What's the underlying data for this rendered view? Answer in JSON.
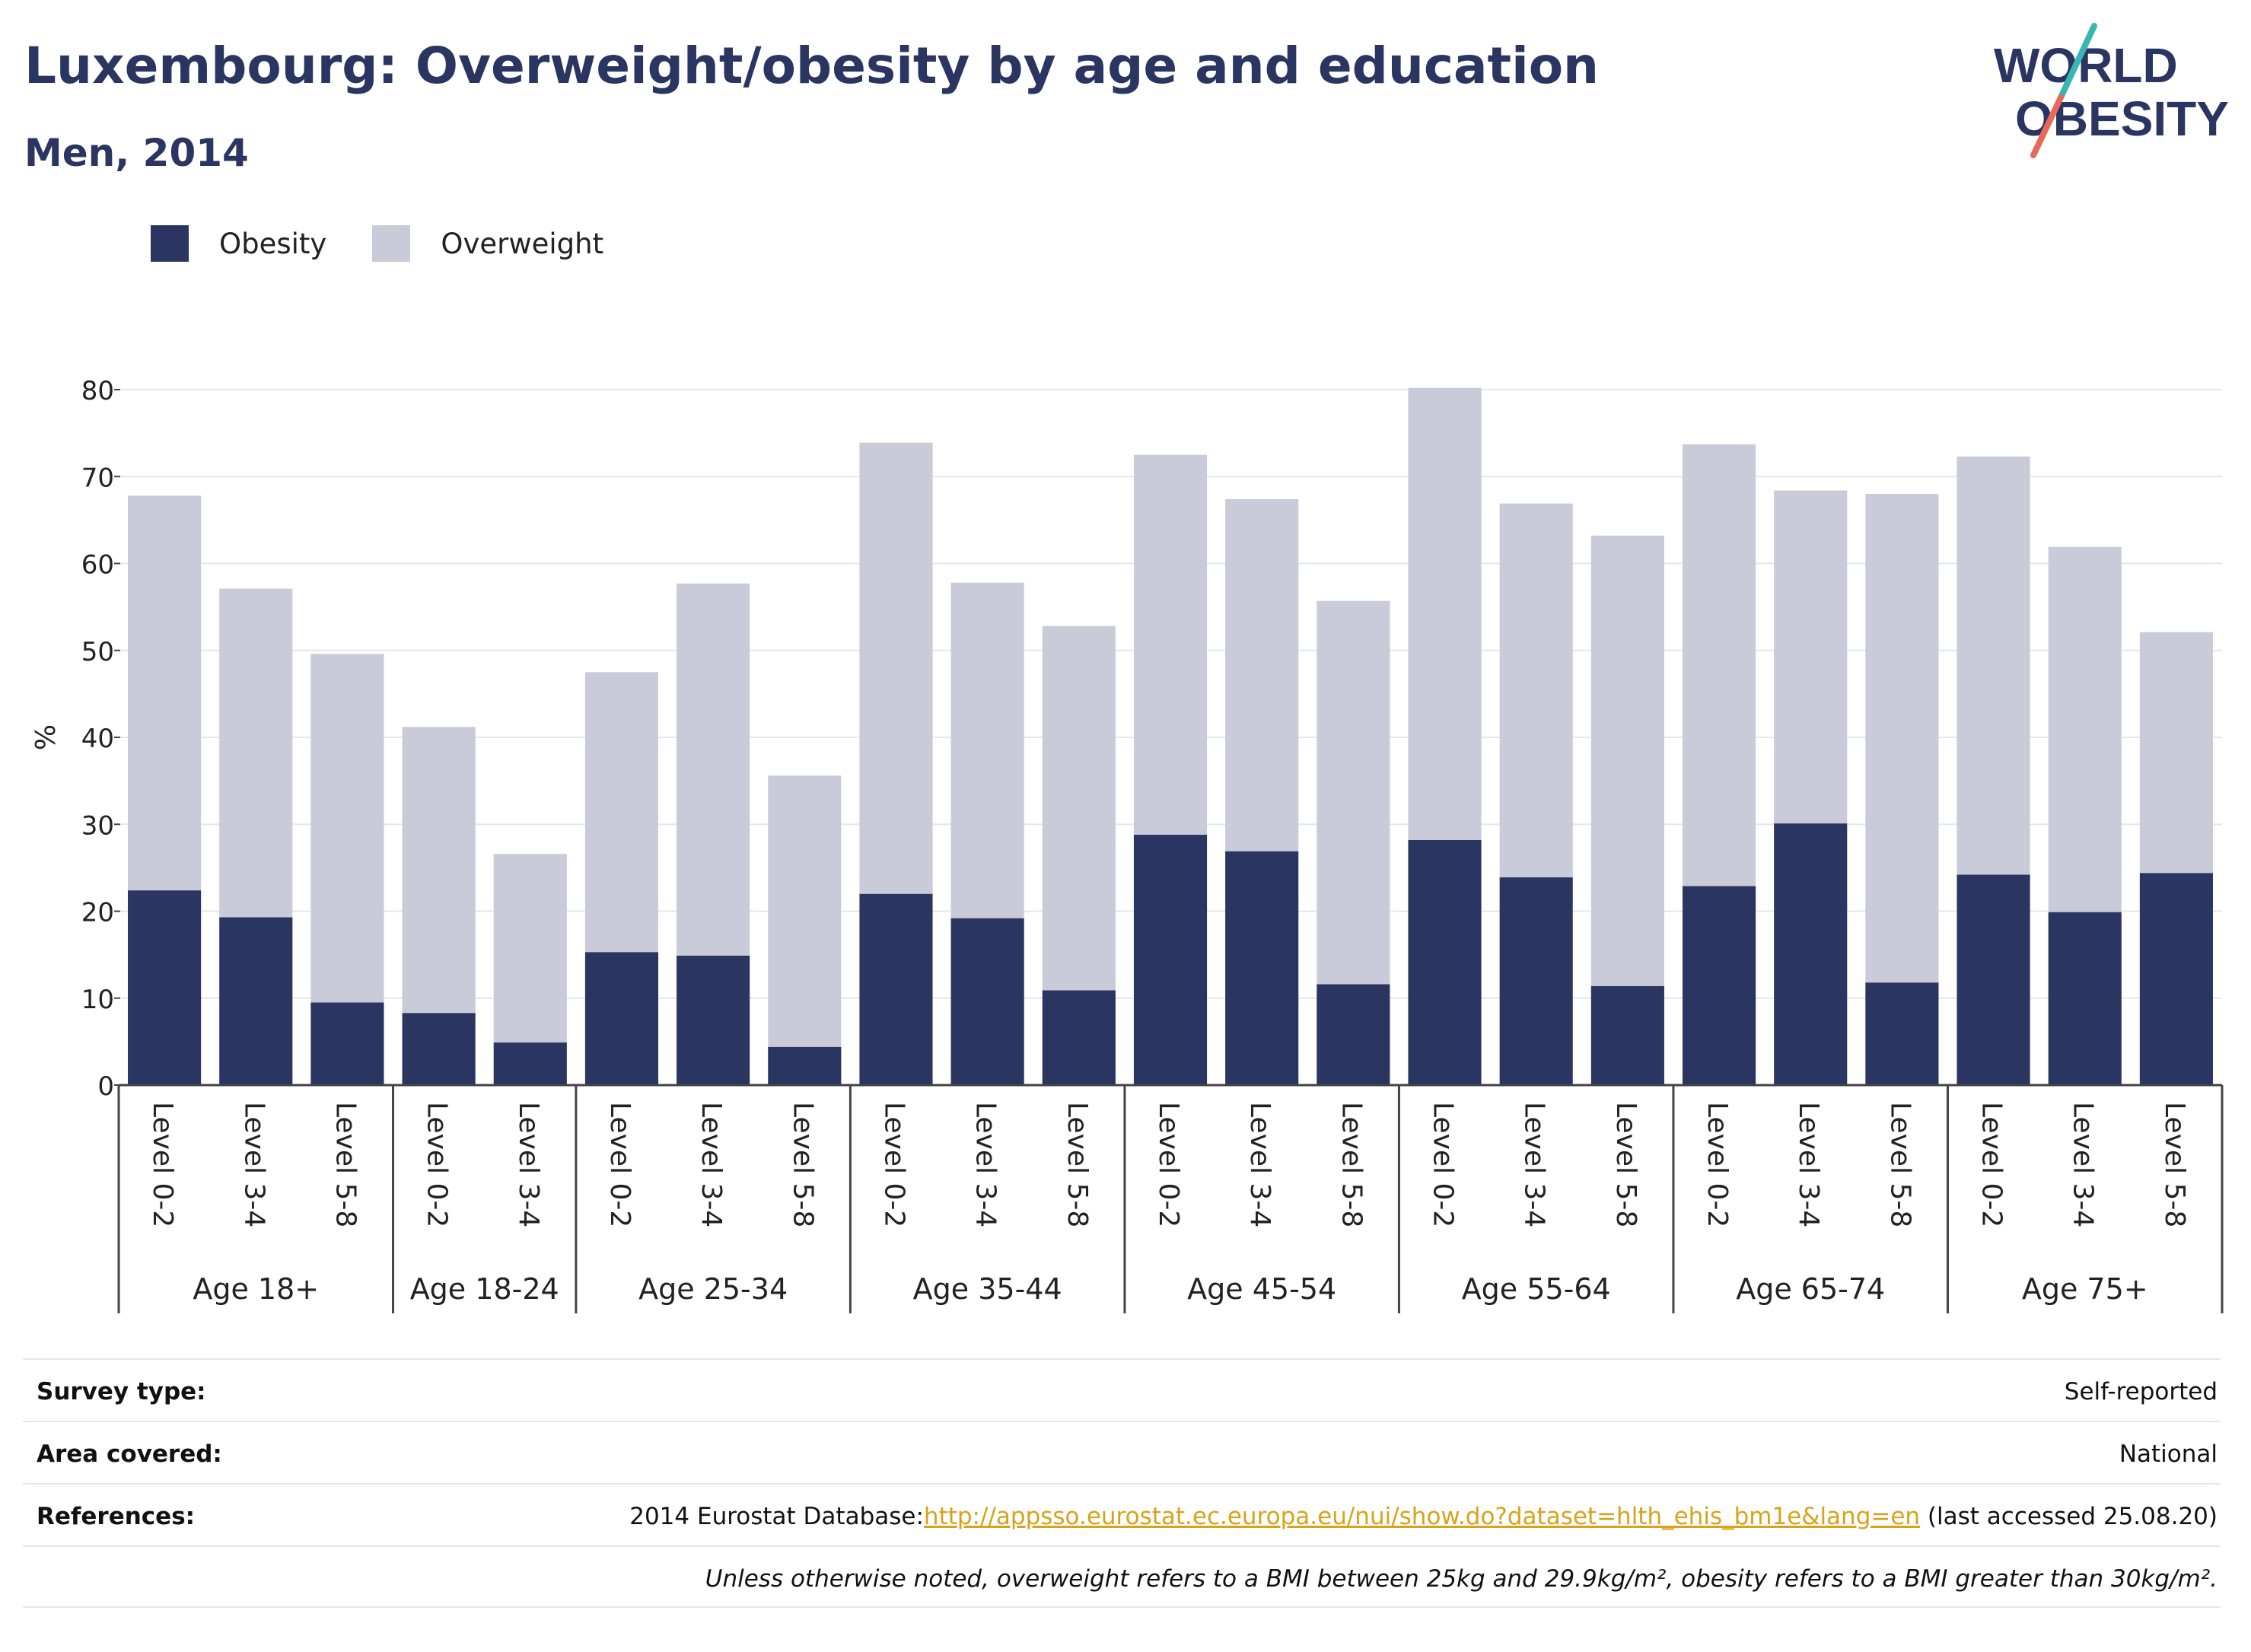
{
  "header": {
    "title": "Luxembourg: Overweight/obesity by age and education",
    "subtitle": "Men, 2014",
    "logo_line1": "WORLD",
    "logo_line2": "OBESITY"
  },
  "legend": {
    "obesity_label": "Obesity",
    "overweight_label": "Overweight"
  },
  "colors": {
    "obesity": "#2a3561",
    "overweight": "#c9cbd8",
    "logo_teal": "#38b6b2",
    "logo_coral": "#e8685a",
    "link": "#d9a21b"
  },
  "chart_data": {
    "type": "bar",
    "stacked": true,
    "ylabel": "%",
    "ylim": [
      0,
      80
    ],
    "yticks": [
      0,
      10,
      20,
      30,
      40,
      50,
      60,
      70,
      80
    ],
    "grid": true,
    "legend_position": "top-left",
    "categories": [
      {
        "group": "Age 18+",
        "level": "Level 0-2"
      },
      {
        "group": "Age 18+",
        "level": "Level 3-4"
      },
      {
        "group": "Age 18+",
        "level": "Level 5-8"
      },
      {
        "group": "Age 18-24",
        "level": "Level 0-2"
      },
      {
        "group": "Age 18-24",
        "level": "Level 3-4"
      },
      {
        "group": "Age 25-34",
        "level": "Level 0-2"
      },
      {
        "group": "Age 25-34",
        "level": "Level 3-4"
      },
      {
        "group": "Age 25-34",
        "level": "Level 5-8"
      },
      {
        "group": "Age 35-44",
        "level": "Level 0-2"
      },
      {
        "group": "Age 35-44",
        "level": "Level 3-4"
      },
      {
        "group": "Age 35-44",
        "level": "Level 5-8"
      },
      {
        "group": "Age 45-54",
        "level": "Level 0-2"
      },
      {
        "group": "Age 45-54",
        "level": "Level 3-4"
      },
      {
        "group": "Age 45-54",
        "level": "Level 5-8"
      },
      {
        "group": "Age 55-64",
        "level": "Level 0-2"
      },
      {
        "group": "Age 55-64",
        "level": "Level 3-4"
      },
      {
        "group": "Age 55-64",
        "level": "Level 5-8"
      },
      {
        "group": "Age 65-74",
        "level": "Level 0-2"
      },
      {
        "group": "Age 65-74",
        "level": "Level 3-4"
      },
      {
        "group": "Age 65-74",
        "level": "Level 5-8"
      },
      {
        "group": "Age 75+",
        "level": "Level 0-2"
      },
      {
        "group": "Age 75+",
        "level": "Level 3-4"
      },
      {
        "group": "Age 75+",
        "level": "Level 5-8"
      }
    ],
    "groups": [
      "Age 18+",
      "Age 18-24",
      "Age 25-34",
      "Age 35-44",
      "Age 45-54",
      "Age 55-64",
      "Age 65-74",
      "Age 75+"
    ],
    "series": [
      {
        "name": "Obesity",
        "values": [
          22.4,
          19.3,
          9.5,
          8.3,
          4.9,
          15.3,
          14.9,
          4.4,
          22.0,
          19.2,
          10.9,
          28.8,
          26.9,
          11.6,
          28.2,
          23.9,
          11.4,
          22.9,
          30.1,
          11.8,
          24.2,
          19.9,
          24.4
        ]
      },
      {
        "name": "Overweight",
        "values": [
          45.4,
          37.8,
          40.1,
          32.9,
          21.7,
          32.2,
          42.8,
          31.2,
          51.9,
          38.6,
          41.9,
          43.7,
          40.5,
          44.1,
          52.0,
          43.0,
          51.8,
          50.8,
          38.3,
          56.2,
          48.1,
          42.0,
          27.7
        ]
      }
    ]
  },
  "footer": {
    "survey_type_label": "Survey type:",
    "survey_type_value": "Self-reported",
    "area_label": "Area covered:",
    "area_value": "National",
    "references_label": "References:",
    "references_prefix": "2014 Eurostat Database:",
    "references_link": "http://appsso.eurostat.ec.europa.eu/nui/show.do?dataset=hlth_ehis_bm1e&lang=en",
    "references_suffix": " (last accessed 25.08.20)",
    "note": "Unless otherwise noted, overweight refers to a BMI between 25kg and 29.9kg/m², obesity refers to a BMI greater than 30kg/m²."
  }
}
